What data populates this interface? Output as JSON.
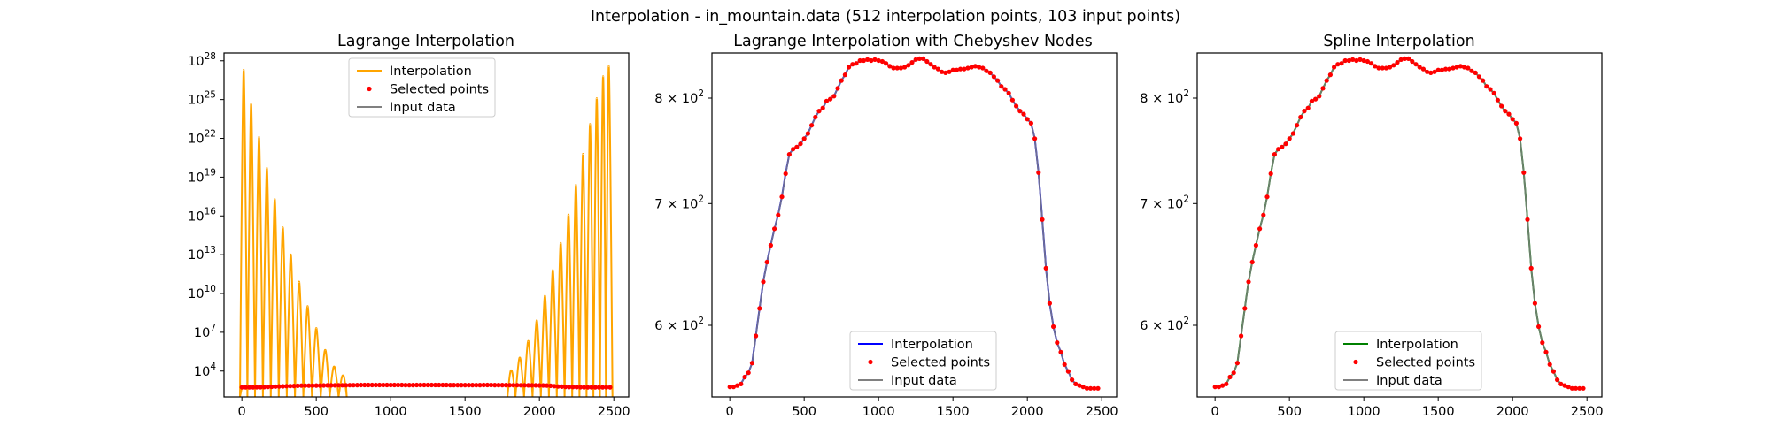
{
  "figure": {
    "suptitle": "Interpolation - in_mountain.data (512 interpolation points, 103 input points)"
  },
  "colors": {
    "lagrange": "#ffa500",
    "chebyshev": "#0000ff",
    "spline": "#008000",
    "points": "#ff0000",
    "input": "#808080"
  },
  "chart_data": [
    {
      "type": "line",
      "title": "Lagrange Interpolation",
      "xlabel": "",
      "ylabel": "",
      "xlim": [
        -120,
        2600
      ],
      "ylim_log10": [
        2.0,
        28.6
      ],
      "yscale": "log",
      "xticks": [
        0,
        500,
        1000,
        1500,
        2000,
        2500
      ],
      "yticks": [
        {
          "exp": 4,
          "label": "10^4"
        },
        {
          "exp": 7,
          "label": "10^7"
        },
        {
          "exp": 10,
          "label": "10^10"
        },
        {
          "exp": 13,
          "label": "10^13"
        },
        {
          "exp": 16,
          "label": "10^16"
        },
        {
          "exp": 19,
          "label": "10^19"
        },
        {
          "exp": 22,
          "label": "10^22"
        },
        {
          "exp": 25,
          "label": "10^25"
        },
        {
          "exp": 28,
          "label": "10^28"
        }
      ],
      "legend": {
        "placement": "upper center",
        "entries": [
          {
            "label": "Interpolation",
            "kind": "line",
            "color_key": "lagrange"
          },
          {
            "label": "Selected points",
            "kind": "dot",
            "color_key": "points"
          },
          {
            "label": "Input data",
            "kind": "line",
            "color_key": "input"
          }
        ]
      },
      "interp_color_key": "lagrange",
      "oscillation": {
        "left_peaks": [
          {
            "x": 12,
            "log10": 27.3
          },
          {
            "x": 62,
            "log10": 24.7
          },
          {
            "x": 115,
            "log10": 22.1
          },
          {
            "x": 168,
            "log10": 19.7
          },
          {
            "x": 221,
            "log10": 17.3
          },
          {
            "x": 275,
            "log10": 15.1
          },
          {
            "x": 329,
            "log10": 13.0
          },
          {
            "x": 385,
            "log10": 10.9
          },
          {
            "x": 442,
            "log10": 9.0
          },
          {
            "x": 500,
            "log10": 7.3
          },
          {
            "x": 560,
            "log10": 5.6
          },
          {
            "x": 620,
            "log10": 4.3
          },
          {
            "x": 680,
            "log10": 3.6
          }
        ],
        "right_peaks": [
          {
            "x": 1810,
            "log10": 4.0
          },
          {
            "x": 1868,
            "log10": 5.0
          },
          {
            "x": 1925,
            "log10": 6.3
          },
          {
            "x": 1982,
            "log10": 7.9
          },
          {
            "x": 2037,
            "log10": 9.8
          },
          {
            "x": 2090,
            "log10": 11.8
          },
          {
            "x": 2143,
            "log10": 13.9
          },
          {
            "x": 2195,
            "log10": 16.1
          },
          {
            "x": 2245,
            "log10": 18.4
          },
          {
            "x": 2293,
            "log10": 20.8
          },
          {
            "x": 2340,
            "log10": 23.1
          },
          {
            "x": 2385,
            "log10": 25.1
          },
          {
            "x": 2428,
            "log10": 26.8
          },
          {
            "x": 2466,
            "log10": 27.6
          }
        ],
        "floor_log10": 2.0
      }
    },
    {
      "type": "line",
      "title": "Lagrange Interpolation with Chebyshev Nodes",
      "xlabel": "",
      "ylabel": "",
      "xlim": [
        -120,
        2600
      ],
      "ylim": [
        548,
        847
      ],
      "yscale": "log",
      "xticks": [
        0,
        500,
        1000,
        1500,
        2000,
        2500
      ],
      "yticks": [
        {
          "value": 600,
          "label": "6 × 10^2"
        },
        {
          "value": 700,
          "label": "7 × 10^2"
        },
        {
          "value": 800,
          "label": "8 × 10^2"
        }
      ],
      "legend": {
        "placement": "lower center",
        "entries": [
          {
            "label": "Interpolation",
            "kind": "line",
            "color_key": "chebyshev"
          },
          {
            "label": "Selected points",
            "kind": "dot",
            "color_key": "points"
          },
          {
            "label": "Input data",
            "kind": "line",
            "color_key": "input"
          }
        ]
      },
      "interp_color_key": "chebyshev"
    },
    {
      "type": "line",
      "title": "Spline Interpolation",
      "xlabel": "",
      "ylabel": "",
      "xlim": [
        -120,
        2600
      ],
      "ylim": [
        548,
        847
      ],
      "yscale": "log",
      "xticks": [
        0,
        500,
        1000,
        1500,
        2000,
        2500
      ],
      "yticks": [
        {
          "value": 600,
          "label": "6 × 10^2"
        },
        {
          "value": 700,
          "label": "7 × 10^2"
        },
        {
          "value": 800,
          "label": "8 × 10^2"
        }
      ],
      "legend": {
        "placement": "lower center",
        "entries": [
          {
            "label": "Interpolation",
            "kind": "line",
            "color_key": "spline"
          },
          {
            "label": "Selected points",
            "kind": "dot",
            "color_key": "points"
          },
          {
            "label": "Input data",
            "kind": "line",
            "color_key": "input"
          }
        ]
      },
      "interp_color_key": "spline"
    }
  ],
  "profile": {
    "description_points_x": [
      0,
      25,
      50,
      75,
      100,
      125,
      150,
      175,
      200,
      225,
      250,
      275,
      300,
      325,
      350,
      375,
      400,
      425,
      450,
      475,
      500,
      525,
      550,
      575,
      600,
      625,
      650,
      675,
      700,
      725,
      750,
      775,
      800,
      825,
      850,
      875,
      900,
      925,
      950,
      975,
      1000,
      1025,
      1050,
      1075,
      1100,
      1125,
      1150,
      1175,
      1200,
      1225,
      1250,
      1275,
      1300,
      1325,
      1350,
      1375,
      1400,
      1425,
      1450,
      1475,
      1500,
      1525,
      1550,
      1575,
      1600,
      1625,
      1650,
      1675,
      1700,
      1725,
      1750,
      1775,
      1800,
      1825,
      1850,
      1875,
      1900,
      1925,
      1950,
      1975,
      2000,
      2025,
      2050,
      2075,
      2100,
      2125,
      2150,
      2175,
      2200,
      2225,
      2250,
      2275,
      2300,
      2325,
      2350,
      2375,
      2400,
      2425,
      2450,
      2475
    ],
    "values": [
      555,
      555,
      556,
      557,
      562,
      565,
      572,
      592,
      613,
      634,
      650,
      664,
      678,
      690,
      706,
      727,
      745,
      750,
      752,
      755,
      760,
      765,
      773,
      781,
      787,
      790,
      797,
      799,
      802,
      810,
      818,
      824,
      832,
      835,
      836,
      839,
      839,
      840,
      839,
      840,
      839,
      838,
      836,
      833,
      831,
      831,
      831,
      832,
      834,
      837,
      840,
      841,
      841,
      838,
      835,
      832,
      830,
      827,
      826,
      827,
      829,
      829,
      830,
      830,
      831,
      832,
      833,
      832,
      831,
      828,
      826,
      822,
      818,
      812,
      809,
      805,
      798,
      792,
      787,
      784,
      779,
      775,
      760,
      728,
      686,
      645,
      617,
      599,
      587,
      580,
      571,
      566,
      560,
      557,
      556,
      555,
      554,
      554,
      554,
      554
    ]
  }
}
